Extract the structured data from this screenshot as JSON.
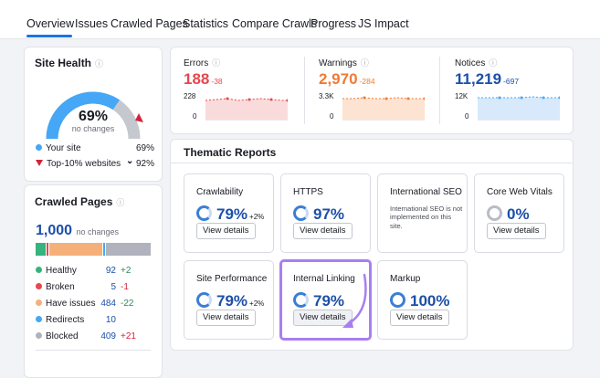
{
  "tabs": [
    {
      "label": "Overview"
    },
    {
      "label": "Issues"
    },
    {
      "label": "Crawled Pages"
    },
    {
      "label": "Statistics"
    },
    {
      "label": "Compare Crawls"
    },
    {
      "label": "Progress"
    },
    {
      "label": "JS Impact"
    }
  ],
  "site_health": {
    "title": "Site Health",
    "info_icon": "info-icon",
    "score": "69%",
    "score_value": 69,
    "score_note": "no changes",
    "legend": [
      {
        "label": "Your site",
        "value": "69%"
      },
      {
        "label": "Top-10% websites",
        "value": "92%",
        "chevron": "⌄"
      }
    ],
    "colors": {
      "gauge": "#45a7f5",
      "gauge_bg": "#c6c8cf",
      "marker": "#d3233a",
      "your_site": "#45a7f5"
    }
  },
  "crawled_pages": {
    "title": "Crawled Pages",
    "count": "1,000",
    "count_note": "no changes",
    "bar": [
      {
        "name": "healthy",
        "share": 0.092,
        "color": "#36b37e"
      },
      {
        "name": "broken",
        "share": 0.005,
        "color": "#e5484d"
      },
      {
        "name": "issues",
        "share": 0.484,
        "color": "#f5b07a"
      },
      {
        "name": "redirects",
        "share": 0.01,
        "color": "#45a7f5"
      },
      {
        "name": "blocked",
        "share": 0.409,
        "color": "#b0b3bd"
      }
    ],
    "rows": [
      {
        "label": "Healthy",
        "value": "92",
        "delta": "+2",
        "delta_color": "#2e8b57",
        "color": "#36b37e"
      },
      {
        "label": "Broken",
        "value": "5",
        "delta": "-1",
        "delta_color": "#d3233a",
        "color": "#e5484d"
      },
      {
        "label": "Have issues",
        "value": "484",
        "delta": "-22",
        "delta_color": "#2e8b57",
        "color": "#f5b07a"
      },
      {
        "label": "Redirects",
        "value": "10",
        "delta": "",
        "delta_color": "#191b23",
        "color": "#45a7f5"
      },
      {
        "label": "Blocked",
        "value": "409",
        "delta": "+21",
        "delta_color": "#d3233a",
        "color": "#b0b3bd"
      }
    ]
  },
  "metrics": [
    {
      "label": "Errors",
      "value": "188",
      "delta": "-38",
      "color": "#e5484d",
      "ymax": "228",
      "ymin": "0",
      "fill": "#fadbdb"
    },
    {
      "label": "Warnings",
      "value": "2,970",
      "delta": "-284",
      "color": "#f07a32",
      "ymax": "3.3K",
      "ymin": "0",
      "fill": "#fde3d2"
    },
    {
      "label": "Notices",
      "value": "11,219",
      "delta": "-697",
      "color": "#1b4faa",
      "ymax": "12K",
      "ymin": "0",
      "fill": "#d7e9fb"
    }
  ],
  "thematic": {
    "title": "Thematic Reports",
    "reports": [
      {
        "name": "Crawlability",
        "pct": "79%",
        "delta": "+2%",
        "button": "View details"
      },
      {
        "name": "HTTPS",
        "pct": "97%",
        "delta": "",
        "button": "View details"
      },
      {
        "name": "International SEO",
        "pct": "",
        "delta": "",
        "desc": "International SEO is not implemented on this site.",
        "button": ""
      },
      {
        "name": "Core Web Vitals",
        "pct": "0%",
        "delta": "",
        "button": "View details"
      },
      {
        "name": "Site Performance",
        "pct": "79%",
        "delta": "+2%",
        "button": "View details"
      },
      {
        "name": "Internal Linking",
        "pct": "79%",
        "delta": "",
        "button": "View details"
      },
      {
        "name": "Markup",
        "pct": "100%",
        "delta": "",
        "button": "View details"
      }
    ],
    "highlight_color": "#a97ff0"
  }
}
